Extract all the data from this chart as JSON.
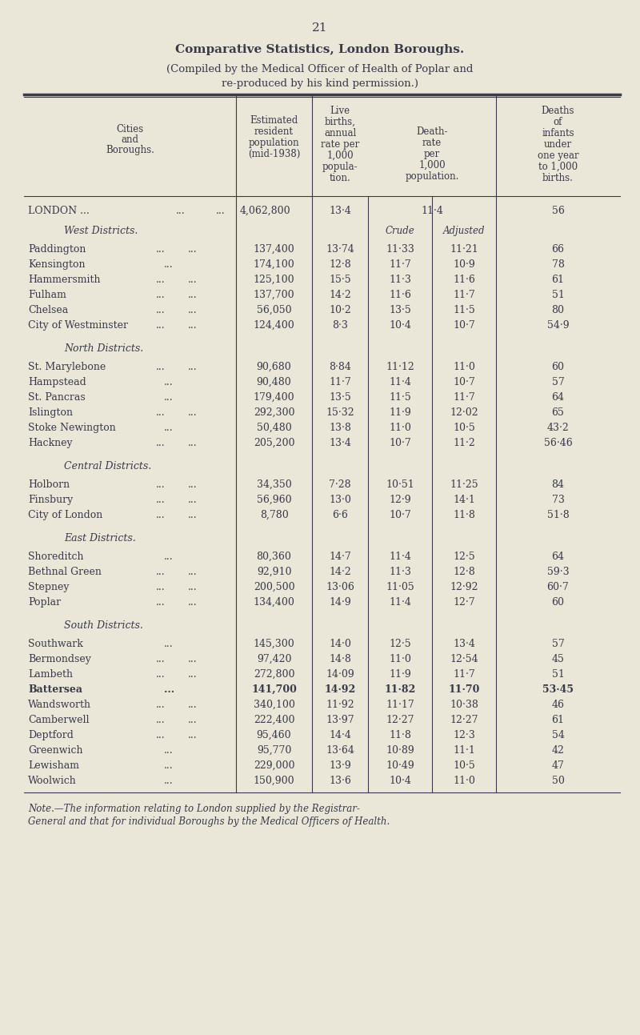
{
  "page_number": "21",
  "title": "Comparative Statistics, London Boroughs.",
  "subtitle1": "(Compiled by the Medical Officer of Health of Poplar and",
  "subtitle2": "re-produced by his kind permission.)",
  "bg_color": "#eae6d8",
  "text_color": "#3a3a4a",
  "sections": [
    {
      "title": "West Districts.",
      "rows": [
        [
          "Paddington",
          "137,400",
          "13·74",
          "11·33",
          "11·21",
          "66"
        ],
        [
          "Kensington...",
          "174,100",
          "12·8",
          "11·7",
          "10·9",
          "78"
        ],
        [
          "Hammersmith",
          "125,100",
          "15·5",
          "11·3",
          "11·6",
          "61"
        ],
        [
          "Fulham",
          "137,700",
          "14·2",
          "11·6",
          "11·7",
          "51"
        ],
        [
          "Chelsea",
          "56,050",
          "10·2",
          "13·5",
          "11·5",
          "80"
        ],
        [
          "City of Westminster",
          "124,400",
          "8·3",
          "10·4",
          "10·7",
          "54·9"
        ]
      ]
    },
    {
      "title": "North Districts.",
      "rows": [
        [
          "St. Marylebone",
          "90,680",
          "8·84",
          "11·12",
          "11·0",
          "60"
        ],
        [
          "Hampstead...",
          "90,480",
          "11·7",
          "11·4",
          "10·7",
          "57"
        ],
        [
          "St. Pancras...",
          "179,400",
          "13·5",
          "11·5",
          "11·7",
          "64"
        ],
        [
          "Islington",
          "292,300",
          "15·32",
          "11·9",
          "12·02",
          "65"
        ],
        [
          "Stoke Newington ...",
          "50,480",
          "13·8",
          "11·0",
          "10·5",
          "43·2"
        ],
        [
          "Hackney",
          "205,200",
          "13·4",
          "10·7",
          "11·2",
          "56·46"
        ]
      ]
    },
    {
      "title": "Central Districts.",
      "rows": [
        [
          "Holborn",
          "34,350",
          "7·28",
          "10·51",
          "11·25",
          "84"
        ],
        [
          "Finsbury",
          "56,960",
          "13·0",
          "12·9",
          "14·1",
          "73"
        ],
        [
          "City of London",
          "8,780",
          "6·6",
          "10·7",
          "11·8",
          "51·8"
        ]
      ]
    },
    {
      "title": "East Districts.",
      "rows": [
        [
          "Shoreditch ...",
          "80,360",
          "14·7",
          "11·4",
          "12·5",
          "64"
        ],
        [
          "Bethnal Green",
          "92,910",
          "14·2",
          "11·3",
          "12·8",
          "59·3"
        ],
        [
          "Stepney",
          "200,500",
          "13·06",
          "11·05",
          "12·92",
          "60·7"
        ],
        [
          "Poplar",
          "134,400",
          "14·9",
          "11·4",
          "12·7",
          "60"
        ]
      ]
    },
    {
      "title": "South Districts.",
      "rows": [
        [
          "Southwark ...",
          "145,300",
          "14·0",
          "12·5",
          "13·4",
          "57"
        ],
        [
          "Bermondsey",
          "97,420",
          "14·8",
          "11·0",
          "12·54",
          "45"
        ],
        [
          "Lambeth",
          "272,800",
          "14·09",
          "11·9",
          "11·7",
          "51"
        ],
        [
          "Battersea ...",
          "141,700",
          "14·92",
          "11·82",
          "11·70",
          "53·45"
        ],
        [
          "Wandsworth",
          "340,100",
          "11·92",
          "11·17",
          "10·38",
          "46"
        ],
        [
          "Camberwell",
          "222,400",
          "13·97",
          "12·27",
          "12·27",
          "61"
        ],
        [
          "Deptford",
          "95,460",
          "14·4",
          "11·8",
          "12·3",
          "54"
        ],
        [
          "Greenwich ...",
          "95,770",
          "13·64",
          "10·89",
          "11·1",
          "42"
        ],
        [
          "Lewisham ...",
          "229,000",
          "13·9",
          "10·49",
          "10·5",
          "47"
        ],
        [
          "Woolwich ...",
          "150,900",
          "13·6",
          "10·4",
          "11·0",
          "50"
        ]
      ]
    }
  ],
  "footnote_line1": "Note.—The information relating to London supplied by the Registrar-",
  "footnote_line2": "General and that for individual Boroughs by the Medical Officers of Health."
}
